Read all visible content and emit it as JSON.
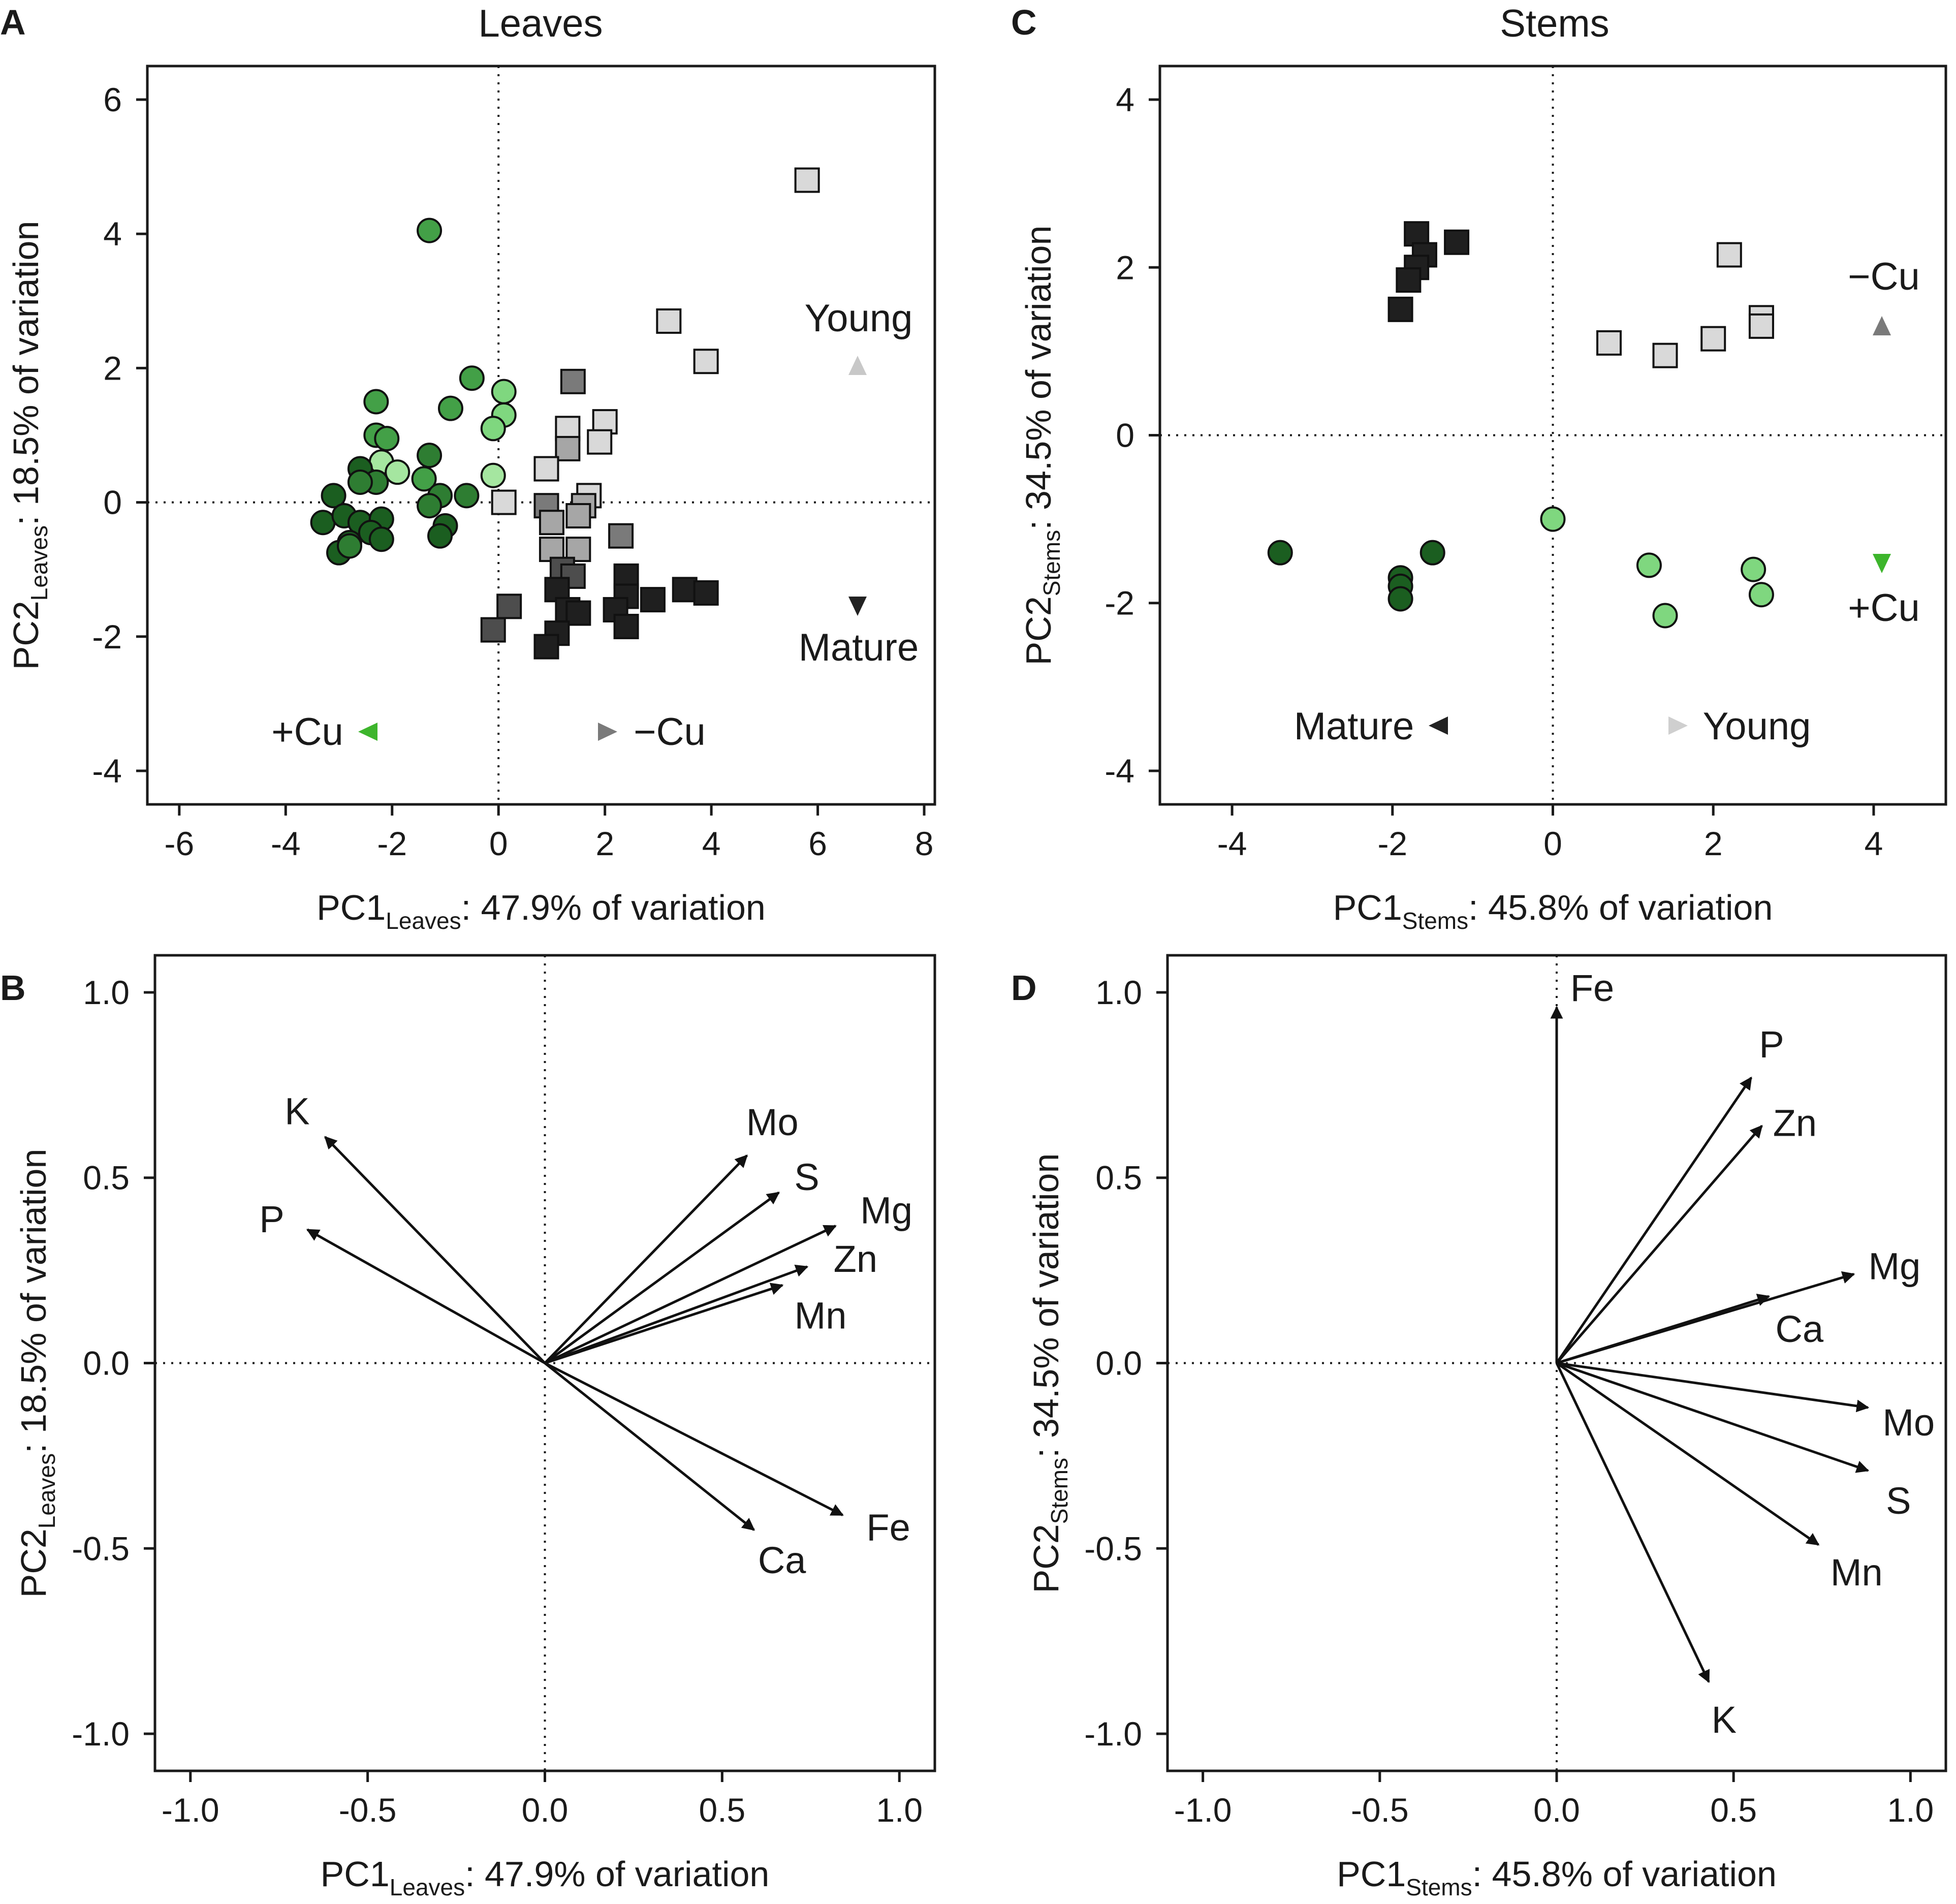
{
  "colors": {
    "young": "#d9d9d9",
    "young_mid": "#a6a6a6",
    "mid": "#7a7a7a",
    "mature_mid": "#4d4d4d",
    "mature": "#1f1f1f",
    "green_dark": "#1b5e20",
    "green_mid2": "#2e7d32",
    "green_mid": "#43a047",
    "green_light": "#7fd77f",
    "green_pale": "#a5e6a0",
    "cu_arrow": "#3db52c",
    "gray_arrow": "#808080"
  },
  "panels": [
    {
      "id": "A",
      "title": "Leaves",
      "xlabel": {
        "main": "PC1",
        "sub": "Leaves",
        "rest": ": 47.9% of variation"
      },
      "ylabel": {
        "main": "PC2",
        "sub": "Leaves",
        "rest": ": 18.5% of variation"
      },
      "xticks": [
        "-6",
        "-4",
        "-2",
        "0",
        "2",
        "4",
        "6",
        "8"
      ],
      "yticks": [
        "-4",
        "-2",
        "0",
        "2",
        "4",
        "6"
      ],
      "annotations": {
        "young": "Young",
        "mature": "Mature",
        "plus_cu": "+Cu",
        "minus_cu": "−Cu"
      }
    },
    {
      "id": "B",
      "title": "",
      "xlabel": {
        "main": "PC1",
        "sub": "Leaves",
        "rest": ": 47.9% of variation"
      },
      "ylabel": {
        "main": "PC2",
        "sub": "Leaves",
        "rest": ": 18.5% of variation"
      },
      "xticks": [
        "-1.0",
        "-0.5",
        "0.0",
        "0.5",
        "1.0"
      ],
      "yticks": [
        "-1.0",
        "-0.5",
        "0.0",
        "0.5",
        "1.0"
      ]
    },
    {
      "id": "C",
      "title": "Stems",
      "xlabel": {
        "main": "PC1",
        "sub": "Stems",
        "rest": ": 45.8% of variation"
      },
      "ylabel": {
        "main": "PC2",
        "sub": "Stems",
        "rest": ": 34.5% of variation"
      },
      "xticks": [
        "-4",
        "-2",
        "0",
        "2",
        "4"
      ],
      "yticks": [
        "-4",
        "-2",
        "0",
        "2",
        "4"
      ],
      "annotations": {
        "young": "Young",
        "mature": "Mature",
        "plus_cu": "+Cu",
        "minus_cu": "−Cu"
      }
    },
    {
      "id": "D",
      "title": "",
      "xlabel": {
        "main": "PC1",
        "sub": "Stems",
        "rest": ": 45.8% of variation"
      },
      "ylabel": {
        "main": "PC2",
        "sub": "Stems",
        "rest": ": 34.5% of variation"
      },
      "xticks": [
        "-1.0",
        "-0.5",
        "0.0",
        "0.5",
        "1.0"
      ],
      "yticks": [
        "-1.0",
        "-0.5",
        "0.0",
        "0.5",
        "1.0"
      ]
    }
  ],
  "chart_data": [
    {
      "panel": "A",
      "type": "scatter",
      "title": "Leaves",
      "xlabel": "PC1 Leaves: 47.9% of variation",
      "ylabel": "PC2 Leaves: 18.5% of variation",
      "xlim": [
        -6.6,
        8.2
      ],
      "ylim": [
        -4.5,
        6.5
      ],
      "grid": false,
      "series": [
        {
          "name": "-Cu (squares)",
          "marker": "square",
          "points": [
            [
              5.8,
              4.8,
              "young"
            ],
            [
              3.2,
              2.7,
              "young"
            ],
            [
              3.9,
              2.1,
              "young"
            ],
            [
              1.4,
              1.8,
              "mid"
            ],
            [
              2.0,
              1.2,
              "young"
            ],
            [
              1.3,
              1.1,
              "young"
            ],
            [
              1.9,
              0.9,
              "young"
            ],
            [
              1.3,
              0.8,
              "young_mid"
            ],
            [
              0.9,
              0.5,
              "young"
            ],
            [
              1.7,
              0.1,
              "young"
            ],
            [
              0.1,
              0.0,
              "young"
            ],
            [
              0.9,
              -0.05,
              "mid"
            ],
            [
              1.6,
              -0.05,
              "young_mid"
            ],
            [
              1.0,
              -0.3,
              "young_mid"
            ],
            [
              1.5,
              -0.2,
              "young_mid"
            ],
            [
              1.0,
              -0.7,
              "young_mid"
            ],
            [
              1.5,
              -0.7,
              "young_mid"
            ],
            [
              2.3,
              -0.5,
              "mid"
            ],
            [
              1.2,
              -1.0,
              "mature_mid"
            ],
            [
              1.4,
              -1.1,
              "mature_mid"
            ],
            [
              1.1,
              -1.3,
              "mature"
            ],
            [
              1.3,
              -1.6,
              "mature"
            ],
            [
              2.4,
              -1.1,
              "mature"
            ],
            [
              2.4,
              -1.4,
              "mature"
            ],
            [
              2.9,
              -1.45,
              "mature"
            ],
            [
              3.5,
              -1.3,
              "mature"
            ],
            [
              3.9,
              -1.35,
              "mature"
            ],
            [
              1.5,
              -1.65,
              "mature"
            ],
            [
              2.2,
              -1.6,
              "mature"
            ],
            [
              2.4,
              -1.85,
              "mature"
            ],
            [
              1.1,
              -1.95,
              "mature"
            ],
            [
              0.9,
              -2.15,
              "mature"
            ],
            [
              0.2,
              -1.55,
              "mature_mid"
            ],
            [
              -0.1,
              -1.9,
              "mature_mid"
            ]
          ]
        },
        {
          "name": "+Cu (circles)",
          "marker": "circle",
          "points": [
            [
              -1.3,
              4.05,
              "green_mid"
            ],
            [
              -0.5,
              1.85,
              "green_mid"
            ],
            [
              0.1,
              1.65,
              "green_light"
            ],
            [
              -2.3,
              1.5,
              "green_mid"
            ],
            [
              0.1,
              1.3,
              "green_light"
            ],
            [
              -0.9,
              1.4,
              "green_mid"
            ],
            [
              -0.1,
              1.1,
              "green_light"
            ],
            [
              -2.3,
              1.0,
              "green_mid"
            ],
            [
              -2.1,
              0.95,
              "green_mid"
            ],
            [
              -2.2,
              0.6,
              "green_pale"
            ],
            [
              -1.9,
              0.45,
              "green_pale"
            ],
            [
              -1.3,
              0.7,
              "green_mid2"
            ],
            [
              -2.6,
              0.5,
              "green_dark"
            ],
            [
              -2.3,
              0.3,
              "green_mid2"
            ],
            [
              -1.4,
              0.35,
              "green_mid"
            ],
            [
              -0.1,
              0.4,
              "green_pale"
            ],
            [
              -1.1,
              0.1,
              "green_mid2"
            ],
            [
              -0.6,
              0.1,
              "green_mid2"
            ],
            [
              -3.1,
              0.1,
              "green_dark"
            ],
            [
              -2.6,
              0.3,
              "green_mid2"
            ],
            [
              -1.3,
              -0.05,
              "green_mid2"
            ],
            [
              -3.3,
              -0.3,
              "green_dark"
            ],
            [
              -2.9,
              -0.2,
              "green_dark"
            ],
            [
              -2.6,
              -0.3,
              "green_dark"
            ],
            [
              -2.2,
              -0.25,
              "green_dark"
            ],
            [
              -1.0,
              -0.35,
              "green_dark"
            ],
            [
              -2.8,
              -0.6,
              "green_dark"
            ],
            [
              -2.4,
              -0.45,
              "green_dark"
            ],
            [
              -2.2,
              -0.55,
              "green_dark"
            ],
            [
              -1.1,
              -0.5,
              "green_dark"
            ],
            [
              -3.0,
              -0.75,
              "green_dark"
            ],
            [
              -2.8,
              -0.65,
              "green_mid2"
            ]
          ]
        }
      ]
    },
    {
      "panel": "B",
      "type": "biplot-vectors",
      "xlabel": "PC1 Leaves: 47.9% of variation",
      "ylabel": "PC2 Leaves: 18.5% of variation",
      "xlim": [
        -1.1,
        1.1
      ],
      "ylim": [
        -1.1,
        1.1
      ],
      "vectors": [
        {
          "label": "K",
          "x": -0.62,
          "y": 0.61
        },
        {
          "label": "P",
          "x": -0.67,
          "y": 0.36
        },
        {
          "label": "Mo",
          "x": 0.57,
          "y": 0.56
        },
        {
          "label": "S",
          "x": 0.66,
          "y": 0.46
        },
        {
          "label": "Mg",
          "x": 0.82,
          "y": 0.37
        },
        {
          "label": "Zn",
          "x": 0.74,
          "y": 0.26
        },
        {
          "label": "Mn",
          "x": 0.67,
          "y": 0.21
        },
        {
          "label": "Fe",
          "x": 0.84,
          "y": -0.41
        },
        {
          "label": "Ca",
          "x": 0.59,
          "y": -0.45
        }
      ]
    },
    {
      "panel": "C",
      "type": "scatter",
      "title": "Stems",
      "xlabel": "PC1 Stems: 45.8% of variation",
      "ylabel": "PC2 Stems: 34.5% of variation",
      "xlim": [
        -4.9,
        4.9
      ],
      "ylim": [
        -4.4,
        4.4
      ],
      "grid": false,
      "series": [
        {
          "name": "-Cu (squares)",
          "marker": "square",
          "points": [
            [
              -1.7,
              2.4,
              "mature"
            ],
            [
              -1.2,
              2.3,
              "mature"
            ],
            [
              -1.6,
              2.15,
              "mature"
            ],
            [
              -1.7,
              2.0,
              "mature"
            ],
            [
              -1.8,
              1.85,
              "mature"
            ],
            [
              -1.9,
              1.5,
              "mature"
            ],
            [
              2.2,
              2.15,
              "young"
            ],
            [
              2.6,
              1.4,
              "young"
            ],
            [
              2.6,
              1.3,
              "young"
            ],
            [
              2.0,
              1.15,
              "young"
            ],
            [
              0.7,
              1.1,
              "young"
            ],
            [
              1.4,
              0.95,
              "young"
            ]
          ]
        },
        {
          "name": "+Cu (circles)",
          "marker": "circle",
          "points": [
            [
              -3.4,
              -1.4,
              "green_dark"
            ],
            [
              -1.5,
              -1.4,
              "green_dark"
            ],
            [
              -1.9,
              -1.7,
              "green_dark"
            ],
            [
              -1.9,
              -1.8,
              "green_dark"
            ],
            [
              -1.9,
              -1.95,
              "green_dark"
            ],
            [
              0.0,
              -1.0,
              "green_light"
            ],
            [
              1.2,
              -1.55,
              "green_light"
            ],
            [
              2.5,
              -1.6,
              "green_light"
            ],
            [
              2.6,
              -1.9,
              "green_light"
            ],
            [
              1.4,
              -2.15,
              "green_light"
            ]
          ]
        }
      ]
    },
    {
      "panel": "D",
      "type": "biplot-vectors",
      "xlabel": "PC1 Stems: 45.8% of variation",
      "ylabel": "PC2 Stems: 34.5% of variation",
      "xlim": [
        -1.1,
        1.1
      ],
      "ylim": [
        -1.1,
        1.1
      ],
      "vectors": [
        {
          "label": "Fe",
          "x": 0.0,
          "y": 0.96
        },
        {
          "label": "P",
          "x": 0.55,
          "y": 0.77
        },
        {
          "label": "Zn",
          "x": 0.58,
          "y": 0.64
        },
        {
          "label": "Mg",
          "x": 0.84,
          "y": 0.24
        },
        {
          "label": "Ca",
          "x": 0.6,
          "y": 0.18
        },
        {
          "label": "Mo",
          "x": 0.88,
          "y": -0.12
        },
        {
          "label": "S",
          "x": 0.88,
          "y": -0.29
        },
        {
          "label": "Mn",
          "x": 0.74,
          "y": -0.49
        },
        {
          "label": "K",
          "x": 0.43,
          "y": -0.86
        }
      ]
    }
  ]
}
